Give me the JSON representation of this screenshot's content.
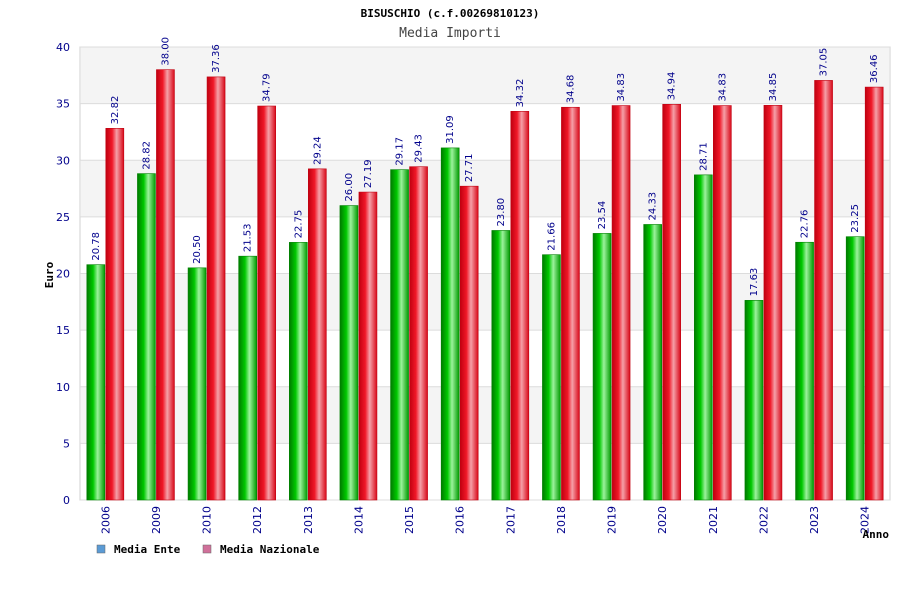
{
  "chart_data": {
    "type": "bar",
    "title": "BISUSCHIO (c.f.00269810123)",
    "subtitle": "Media Importi",
    "xlabel": "Anno",
    "ylabel": "Euro",
    "ylim": [
      0,
      40
    ],
    "yticks": [
      0,
      5,
      10,
      15,
      20,
      25,
      30,
      35,
      40
    ],
    "grid": true,
    "legend_position": "bottom-left",
    "categories": [
      "2006",
      "2009",
      "2010",
      "2012",
      "2013",
      "2014",
      "2015",
      "2016",
      "2017",
      "2018",
      "2019",
      "2020",
      "2021",
      "2022",
      "2023",
      "2024"
    ],
    "series": [
      {
        "name": "Media Ente",
        "color": "#00a000",
        "legend_color": "#5b9bd5",
        "values": [
          20.78,
          28.82,
          20.5,
          21.53,
          22.75,
          26.0,
          29.17,
          31.09,
          23.8,
          21.66,
          23.54,
          24.33,
          28.71,
          17.63,
          22.76,
          23.25
        ],
        "labels": [
          "20.78",
          "28.82",
          "20.50",
          "21.53",
          "22.75",
          "26.00",
          "29.17",
          "31.09",
          "23.80",
          "21.66",
          "23.54",
          "24.33",
          "28.71",
          "17.63",
          "22.76",
          "23.25"
        ]
      },
      {
        "name": "Media Nazionale",
        "color": "#e01020",
        "legend_color": "#d0709a",
        "values": [
          32.82,
          38.0,
          37.36,
          34.79,
          29.24,
          27.19,
          29.43,
          27.71,
          34.32,
          34.68,
          34.83,
          34.94,
          34.83,
          34.85,
          37.05,
          36.46
        ],
        "labels": [
          "32.82",
          "38.00",
          "37.36",
          "34.79",
          "29.24",
          "27.19",
          "29.43",
          "27.71",
          "34.32",
          "34.68",
          "34.83",
          "34.94",
          "34.83",
          "34.85",
          "37.05",
          "36.46"
        ]
      }
    ]
  }
}
